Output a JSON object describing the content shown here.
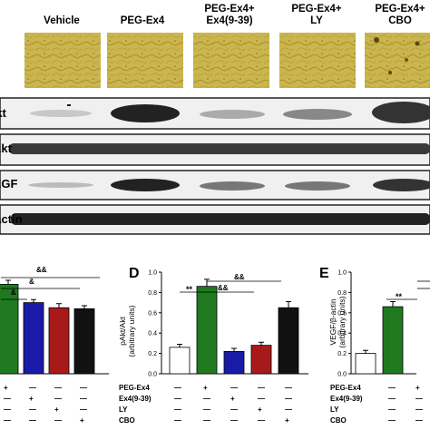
{
  "figure": {
    "group_headers": [
      "Vehicle",
      "PEG-Ex4",
      "PEG-Ex4+\nEx4(9-39)",
      "PEG-Ex4+\nLY",
      "PEG-Ex4+\nCBO"
    ],
    "colors": {
      "micro_bg": "#c9b24a",
      "micro_dark": "#8f7a22"
    },
    "blots": [
      {
        "label": "pAkt"
      },
      {
        "label": "Akt"
      },
      {
        "label": "VEGF"
      },
      {
        "label": "β-actin"
      }
    ],
    "panels": {
      "left": {
        "sig": [
          "&&",
          "&",
          "&"
        ],
        "dash": "—",
        "plus": "+"
      },
      "D": {
        "letter": "D",
        "sig": [
          "**",
          "&&",
          "&&"
        ]
      },
      "E": {
        "letter": "E",
        "sig": [
          "**"
        ]
      }
    },
    "treatment_rows": [
      "PEG-Ex4",
      "Ex4(9-39)",
      "LY",
      "CBO"
    ]
  },
  "chart_data": [
    {
      "type": "bar",
      "panel": "C (cropped)",
      "categories": [
        "PEG-Ex4",
        "PEG-Ex4+Ex4(9-39)",
        "PEG-Ex4+LY",
        "PEG-Ex4+CBO"
      ],
      "values": [
        0.88,
        0.7,
        0.65,
        0.64
      ],
      "errors": [
        0.04,
        0.03,
        0.04,
        0.03
      ],
      "colors": [
        "#1f7a1f",
        "#1a1aa8",
        "#a81a1a",
        "#111111"
      ]
    },
    {
      "type": "bar",
      "panel": "D",
      "ylabel": "pAkt/Akt\n(arbitrary units)",
      "ylim": [
        0,
        1.0
      ],
      "yticks": [
        "0.0",
        "0.2",
        "0.4",
        "0.6",
        "0.8",
        "1.0"
      ],
      "categories": [
        "Vehicle",
        "PEG-Ex4",
        "PEG-Ex4+Ex4(9-39)",
        "PEG-Ex4+LY",
        "PEG-Ex4+CBO"
      ],
      "values": [
        0.26,
        0.86,
        0.22,
        0.28,
        0.65
      ],
      "errors": [
        0.03,
        0.07,
        0.03,
        0.03,
        0.06
      ],
      "colors": [
        "#ffffff",
        "#1f7a1f",
        "#1a1aa8",
        "#a81a1a",
        "#111111"
      ]
    },
    {
      "type": "bar",
      "panel": "E",
      "ylabel": "VEGF/β-actin\n(arbitrary units)",
      "ylim": [
        0,
        1.0
      ],
      "yticks": [
        "0.0",
        "0.2",
        "0.4",
        "0.6",
        "0.8",
        "1.0"
      ],
      "categories": [
        "Vehicle",
        "PEG-Ex4"
      ],
      "values": [
        0.2,
        0.66
      ],
      "errors": [
        0.03,
        0.05
      ],
      "colors": [
        "#ffffff",
        "#1f7a1f"
      ]
    }
  ],
  "treatment_table": {
    "D": [
      [
        "—",
        "+",
        "—",
        "—",
        "—"
      ],
      [
        "—",
        "—",
        "+",
        "—",
        "—"
      ],
      [
        "—",
        "—",
        "—",
        "+",
        "—"
      ],
      [
        "—",
        "—",
        "—",
        "—",
        "+"
      ]
    ],
    "E": [
      [
        "—",
        "+"
      ],
      [
        "—",
        "—"
      ],
      [
        "—",
        "—"
      ],
      [
        "—",
        "—"
      ]
    ],
    "left": [
      [
        "+",
        "—",
        "—",
        "—"
      ],
      [
        "—",
        "+",
        "—",
        "—"
      ],
      [
        "—",
        "—",
        "+",
        "—"
      ],
      [
        "—",
        "—",
        "—",
        "+"
      ]
    ]
  }
}
